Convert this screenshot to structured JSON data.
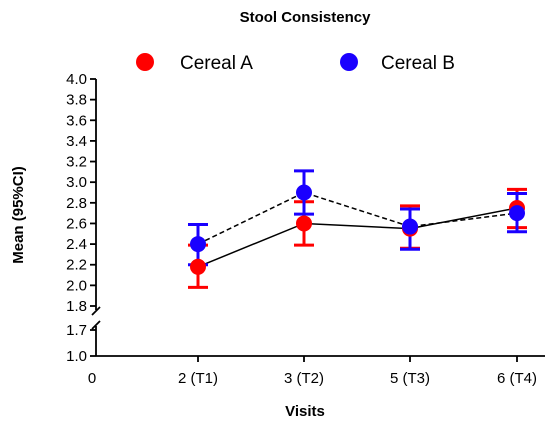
{
  "chart_data": {
    "type": "line",
    "title": "Stool Consistency",
    "xlabel": "Visits",
    "ylabel": "Mean (95%CI)",
    "x_origin_label": "0",
    "categories": [
      "2 (T1)",
      "3 (T2)",
      "5 (T3)",
      "6 (T4)"
    ],
    "y_ticks_lower": [
      "1.0",
      "1.7"
    ],
    "y_ticks_upper": [
      "1.8",
      "2.0",
      "2.2",
      "2.4",
      "2.6",
      "2.8",
      "3.0",
      "3.2",
      "3.4",
      "3.6",
      "3.8",
      "4.0"
    ],
    "y_tick_values_lower": [
      1.0,
      1.7
    ],
    "y_tick_values_upper": [
      1.8,
      2.0,
      2.2,
      2.4,
      2.6,
      2.8,
      3.0,
      3.2,
      3.4,
      3.6,
      3.8,
      4.0
    ],
    "ylim_lower": [
      1.0,
      1.7
    ],
    "ylim_upper": [
      1.8,
      4.0
    ],
    "axis_break": true,
    "legend_position": "top",
    "series": [
      {
        "name": "Cereal A",
        "color": "#ff0000",
        "line_style": "solid",
        "values": [
          2.18,
          2.6,
          2.55,
          2.75
        ],
        "ci_low": [
          1.98,
          2.39,
          2.36,
          2.56
        ],
        "ci_high": [
          2.39,
          2.81,
          2.77,
          2.93
        ]
      },
      {
        "name": "Cereal B",
        "color": "#1a00ff",
        "line_style": "dashed",
        "values": [
          2.4,
          2.9,
          2.57,
          2.7
        ],
        "ci_low": [
          2.2,
          2.69,
          2.35,
          2.52
        ],
        "ci_high": [
          2.59,
          3.11,
          2.74,
          2.89
        ]
      }
    ]
  }
}
